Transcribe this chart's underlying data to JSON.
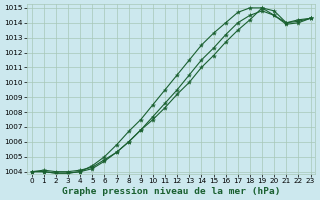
{
  "title": "Graphe pression niveau de la mer (hPa)",
  "bg_color": "#cce8ee",
  "grid_color": "#a8c8b8",
  "line_color": "#1a6030",
  "line1_y": [
    1004.0,
    1004.1,
    1004.0,
    1004.0,
    1004.1,
    1004.3,
    1004.8,
    1005.3,
    1006.0,
    1006.8,
    1007.5,
    1008.3,
    1009.2,
    1010.0,
    1011.0,
    1011.8,
    1012.7,
    1013.5,
    1014.2,
    1015.0,
    1014.8,
    1014.0,
    1014.2,
    1014.3
  ],
  "line2_y": [
    1004.0,
    1004.0,
    1003.9,
    1003.9,
    1004.0,
    1004.4,
    1005.0,
    1005.8,
    1006.7,
    1007.5,
    1008.5,
    1009.5,
    1010.5,
    1011.5,
    1012.5,
    1013.3,
    1014.0,
    1014.7,
    1015.0,
    1015.0,
    1014.5,
    1014.0,
    1014.1,
    1014.3
  ],
  "line3_y": [
    1004.0,
    1004.0,
    1003.9,
    1003.9,
    1004.0,
    1004.2,
    1004.7,
    1005.3,
    1006.0,
    1006.8,
    1007.7,
    1008.6,
    1009.5,
    1010.5,
    1011.5,
    1012.3,
    1013.2,
    1014.0,
    1014.5,
    1014.8,
    1014.5,
    1013.9,
    1014.0,
    1014.3
  ],
  "ylim_min": 1004,
  "ylim_max": 1015,
  "xlim_min": 0,
  "xlim_max": 23,
  "yticks": [
    1004,
    1005,
    1006,
    1007,
    1008,
    1009,
    1010,
    1011,
    1012,
    1013,
    1014,
    1015
  ],
  "xticks": [
    0,
    1,
    2,
    3,
    4,
    5,
    6,
    7,
    8,
    9,
    10,
    11,
    12,
    13,
    14,
    15,
    16,
    17,
    18,
    19,
    20,
    21,
    22,
    23
  ],
  "title_fontsize": 6.8,
  "tick_fontsize": 5.2
}
